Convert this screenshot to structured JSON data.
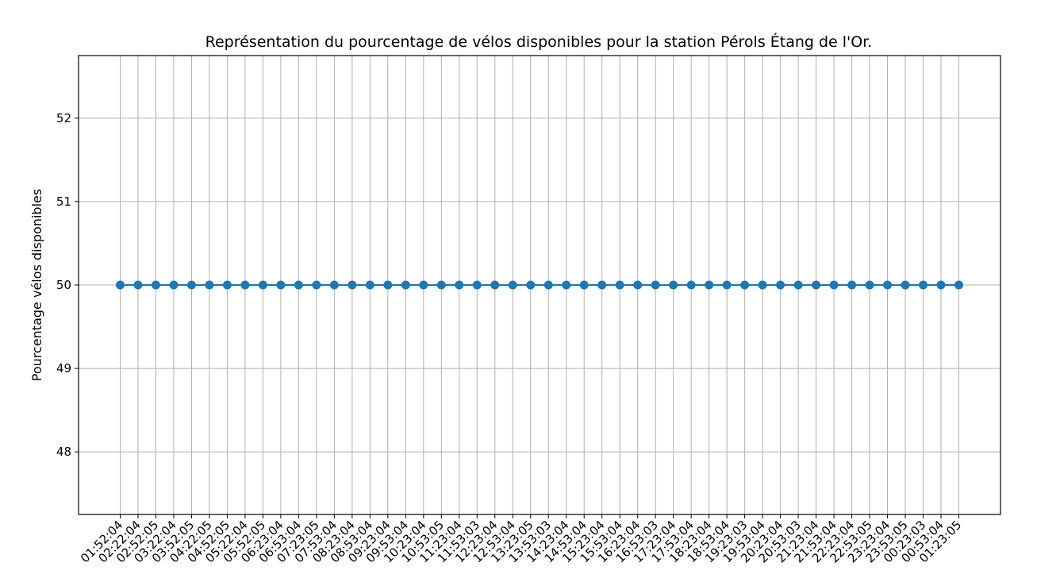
{
  "chart_data": {
    "type": "line",
    "title": "Représentation du pourcentage de vélos disponibles pour la station Pérols Étang de l'Or.",
    "xlabel": "",
    "ylabel": "Pourcentage vélos disponibles",
    "ylim": [
      47.25,
      52.75
    ],
    "yticks": [
      "48",
      "49",
      "50",
      "51",
      "52"
    ],
    "grid": true,
    "marker": "circle",
    "colors": {
      "series": "#1f77b4",
      "grid": "#b0b0b0"
    },
    "x": [
      "01:52:04",
      "02:22:04",
      "02:52:05",
      "03:22:04",
      "03:52:05",
      "04:22:05",
      "04:52:05",
      "05:22:04",
      "05:52:05",
      "06:23:04",
      "06:53:04",
      "07:23:05",
      "07:53:04",
      "08:23:04",
      "08:53:04",
      "09:23:04",
      "09:53:04",
      "10:23:04",
      "10:53:05",
      "11:23:04",
      "11:53:03",
      "12:23:04",
      "12:53:04",
      "13:23:05",
      "13:53:03",
      "14:23:04",
      "14:53:04",
      "15:23:04",
      "15:53:04",
      "16:23:04",
      "16:53:03",
      "17:23:04",
      "17:53:04",
      "18:23:04",
      "18:53:04",
      "19:23:03",
      "19:53:04",
      "20:23:04",
      "20:53:03",
      "21:23:04",
      "21:53:04",
      "22:23:04",
      "22:53:05",
      "23:23:04",
      "23:53:05",
      "00:23:03",
      "00:53:04",
      "01:23:05"
    ],
    "series": [
      {
        "values": [
          50,
          50,
          50,
          50,
          50,
          50,
          50,
          50,
          50,
          50,
          50,
          50,
          50,
          50,
          50,
          50,
          50,
          50,
          50,
          50,
          50,
          50,
          50,
          50,
          50,
          50,
          50,
          50,
          50,
          50,
          50,
          50,
          50,
          50,
          50,
          50,
          50,
          50,
          50,
          50,
          50,
          50,
          50,
          50,
          50,
          50,
          50,
          50
        ]
      }
    ]
  }
}
